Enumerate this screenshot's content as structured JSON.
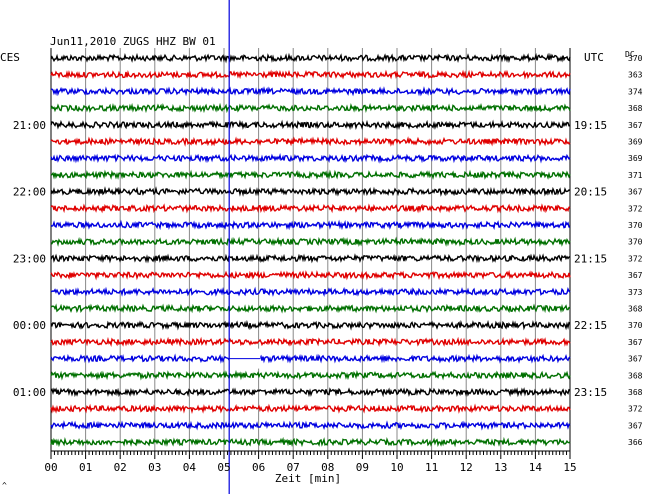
{
  "chart_data": {
    "type": "line",
    "title": "Jun11,2010  ZUGS HHZ BW 01",
    "left_timezone": "CES",
    "right_timezone": "UTC",
    "dc_header": "DC",
    "xlabel": "Zeit [min]",
    "x_ticks": [
      "00",
      "01",
      "02",
      "03",
      "04",
      "05",
      "06",
      "07",
      "08",
      "09",
      "10",
      "11",
      "12",
      "13",
      "14",
      "15"
    ],
    "xlim": [
      0,
      15
    ],
    "trace_colors": [
      "#000000",
      "#e00000",
      "#0000e0",
      "#007000"
    ],
    "left_time_labels": [
      {
        "trace": 4,
        "text": "21:00"
      },
      {
        "trace": 8,
        "text": "22:00"
      },
      {
        "trace": 12,
        "text": "23:00"
      },
      {
        "trace": 16,
        "text": "00:00"
      },
      {
        "trace": 20,
        "text": "01:00"
      }
    ],
    "right_time_labels": [
      {
        "trace": 4,
        "text": "19:15"
      },
      {
        "trace": 8,
        "text": "20:15"
      },
      {
        "trace": 12,
        "text": "21:15"
      },
      {
        "trace": 16,
        "text": "22:15"
      },
      {
        "trace": 20,
        "text": "23:15"
      }
    ],
    "dc_values": [
      "370",
      "363",
      "374",
      "368",
      "367",
      "369",
      "369",
      "371",
      "367",
      "372",
      "370",
      "370",
      "372",
      "367",
      "373",
      "368",
      "370",
      "367",
      "367",
      "368",
      "368",
      "372",
      "367",
      "366"
    ],
    "marker_line_minute": 5.15,
    "data_gap": {
      "trace": 18,
      "start_min": 5.15,
      "end_min": 6.05
    },
    "corner_mark": "^"
  }
}
